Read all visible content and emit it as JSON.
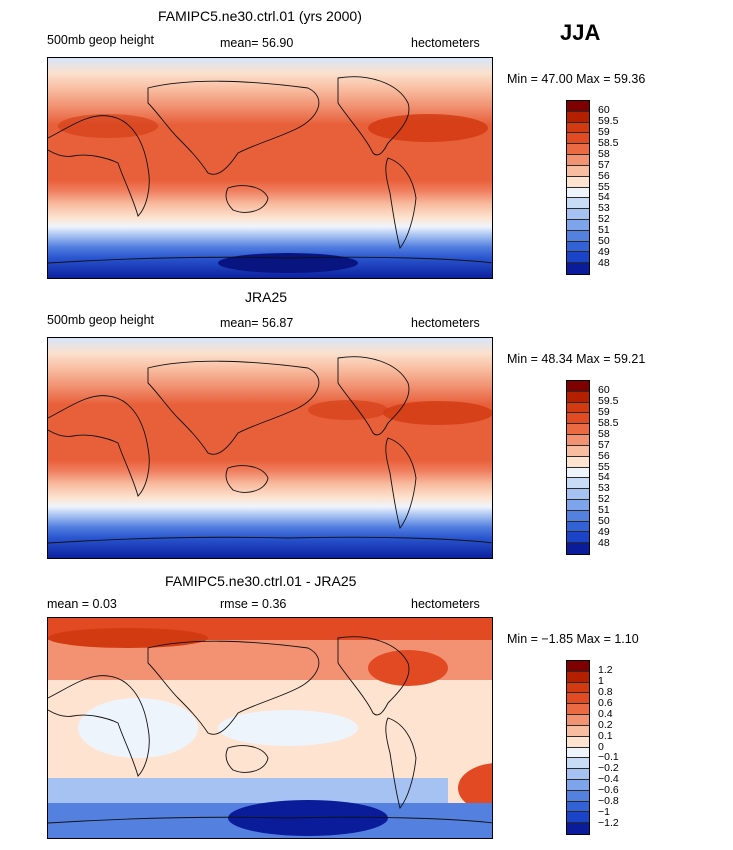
{
  "season": "JJA",
  "units": "hectometers",
  "panels": [
    {
      "title": "FAMIPC5.ne30.ctrl.01 (yrs 2000)",
      "left_label": "500mb geop height",
      "center_label": "mean=  56.90",
      "right_label": "hectometers",
      "minmax": "Min =  47.00 Max =  59.36"
    },
    {
      "title": "JRA25",
      "left_label": "500mb geop height",
      "center_label": "mean=  56.87",
      "right_label": "hectometers",
      "minmax": "Min =  48.34 Max =  59.21"
    },
    {
      "title": "FAMIPC5.ne30.ctrl.01 - JRA25",
      "left_label": "mean =    0.03",
      "center_label": "rmse =    0.36",
      "right_label": "hectometers",
      "minmax": "Min =  −1.85 Max =   1.10"
    }
  ],
  "colorbars": {
    "absolute": {
      "labels": [
        "60",
        "59.5",
        "59",
        "58.5",
        "58",
        "57",
        "56",
        "55",
        "54",
        "53",
        "52",
        "51",
        "50",
        "49",
        "48"
      ],
      "colors": [
        "#7f0000",
        "#b22000",
        "#d23a12",
        "#e14a22",
        "#ec6a42",
        "#f39272",
        "#f8bda0",
        "#fde3d0",
        "#eef4fc",
        "#c8dcf6",
        "#a6c2f2",
        "#7ea4ec",
        "#5480e0",
        "#3262d6",
        "#1c44c8",
        "#0a1c9a"
      ]
    },
    "difference": {
      "labels": [
        "1.2",
        "1",
        "0.8",
        "0.6",
        "0.4",
        "0.2",
        "0.1",
        "0",
        "−0.1",
        "−0.2",
        "−0.4",
        "−0.6",
        "−0.8",
        "−1",
        "−1.2"
      ],
      "colors": [
        "#7f0000",
        "#b22000",
        "#d23a12",
        "#e14a22",
        "#ec6a42",
        "#f39272",
        "#f8bda0",
        "#fde3d0",
        "#eef4fc",
        "#c8dcf6",
        "#a6c2f2",
        "#7ea4ec",
        "#5480e0",
        "#3262d6",
        "#1c44c8",
        "#0a1c9a"
      ]
    }
  },
  "chart_data": [
    {
      "type": "heatmap",
      "title": "FAMIPC5.ne30.ctrl.01 (yrs 2000)",
      "field": "500mb geop height",
      "units": "hectometers",
      "season": "JJA",
      "mean": 56.9,
      "min": 47.0,
      "max": 59.36,
      "contour_levels": [
        48,
        49,
        50,
        51,
        52,
        53,
        54,
        55,
        56,
        57,
        58,
        58.5,
        59,
        59.5,
        60
      ],
      "x_range": [
        0,
        360
      ],
      "y_range": [
        -90,
        90
      ]
    },
    {
      "type": "heatmap",
      "title": "JRA25",
      "field": "500mb geop height",
      "units": "hectometers",
      "season": "JJA",
      "mean": 56.87,
      "min": 48.34,
      "max": 59.21,
      "contour_levels": [
        48,
        49,
        50,
        51,
        52,
        53,
        54,
        55,
        56,
        57,
        58,
        58.5,
        59,
        59.5,
        60
      ],
      "x_range": [
        0,
        360
      ],
      "y_range": [
        -90,
        90
      ]
    },
    {
      "type": "heatmap",
      "title": "FAMIPC5.ne30.ctrl.01 - JRA25",
      "units": "hectometers",
      "season": "JJA",
      "mean": 0.03,
      "rmse": 0.36,
      "min": -1.85,
      "max": 1.1,
      "contour_levels": [
        -1.2,
        -1,
        -0.8,
        -0.6,
        -0.4,
        -0.2,
        -0.1,
        0,
        0.1,
        0.2,
        0.4,
        0.6,
        0.8,
        1,
        1.2
      ],
      "x_range": [
        0,
        360
      ],
      "y_range": [
        -90,
        90
      ]
    }
  ]
}
